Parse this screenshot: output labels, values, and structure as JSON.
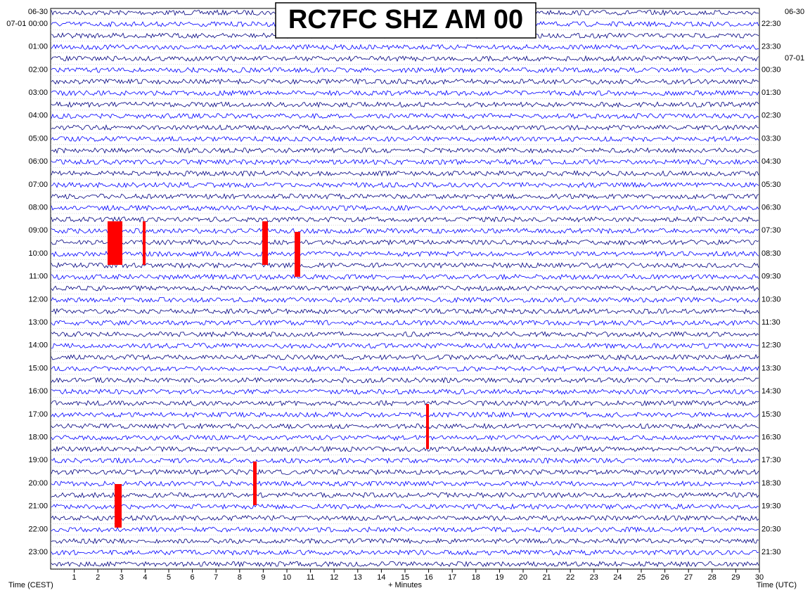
{
  "title": "RC7FC SHZ AM 00",
  "chart_data": {
    "type": "helicorder",
    "left_labels": [
      "06-30",
      "07-01 00:00",
      "01:00",
      "02:00",
      "03:00",
      "04:00",
      "05:00",
      "06:00",
      "07:00",
      "08:00",
      "09:00",
      "10:00",
      "11:00",
      "12:00",
      "13:00",
      "14:00",
      "15:00",
      "16:00",
      "17:00",
      "18:00",
      "19:00",
      "20:00",
      "21:00",
      "22:00",
      "23:00"
    ],
    "right_labels": [
      "06-30",
      "22:30",
      "23:30",
      "07-01",
      "00:30",
      "01:30",
      "02:30",
      "03:30",
      "04:30",
      "05:30",
      "06:30",
      "07:30",
      "08:30",
      "09:30",
      "10:30",
      "11:30",
      "12:30",
      "13:30",
      "14:30",
      "15:30",
      "16:30",
      "17:30",
      "18:30",
      "19:30",
      "20:30",
      "21:30"
    ],
    "xlim": [
      0,
      30
    ],
    "xticks": [
      1,
      2,
      3,
      4,
      5,
      6,
      7,
      8,
      9,
      10,
      11,
      12,
      13,
      14,
      15,
      16,
      17,
      18,
      19,
      20,
      21,
      22,
      23,
      24,
      25,
      26,
      27,
      28,
      29,
      30
    ],
    "left_axis_label": "Time (CEST)",
    "x_axis_label": "+ Minutes",
    "right_axis_label": "Time (UTC)"
  }
}
